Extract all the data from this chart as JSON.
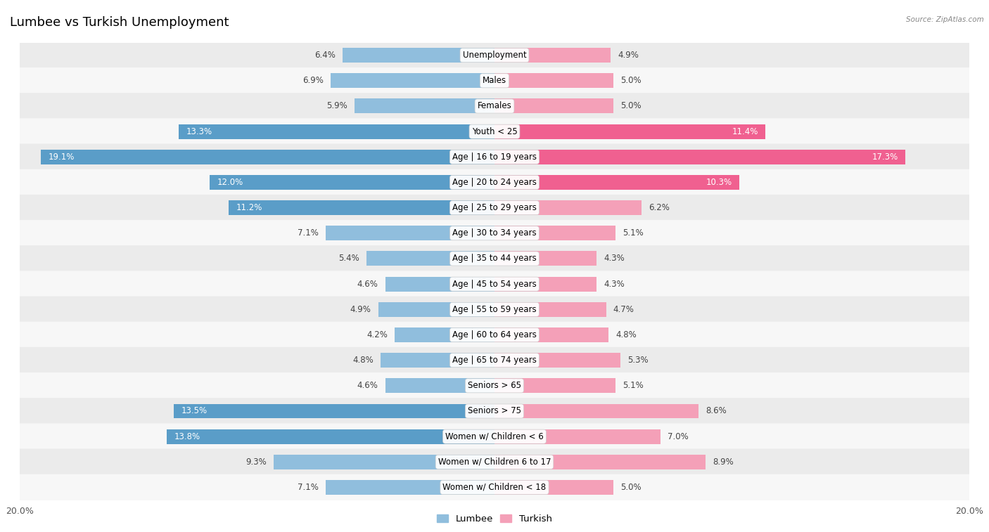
{
  "title": "Lumbee vs Turkish Unemployment",
  "source": "Source: ZipAtlas.com",
  "categories": [
    "Unemployment",
    "Males",
    "Females",
    "Youth < 25",
    "Age | 16 to 19 years",
    "Age | 20 to 24 years",
    "Age | 25 to 29 years",
    "Age | 30 to 34 years",
    "Age | 35 to 44 years",
    "Age | 45 to 54 years",
    "Age | 55 to 59 years",
    "Age | 60 to 64 years",
    "Age | 65 to 74 years",
    "Seniors > 65",
    "Seniors > 75",
    "Women w/ Children < 6",
    "Women w/ Children 6 to 17",
    "Women w/ Children < 18"
  ],
  "lumbee_values": [
    6.4,
    6.9,
    5.9,
    13.3,
    19.1,
    12.0,
    11.2,
    7.1,
    5.4,
    4.6,
    4.9,
    4.2,
    4.8,
    4.6,
    13.5,
    13.8,
    9.3,
    7.1
  ],
  "turkish_values": [
    4.9,
    5.0,
    5.0,
    11.4,
    17.3,
    10.3,
    6.2,
    5.1,
    4.3,
    4.3,
    4.7,
    4.8,
    5.3,
    5.1,
    8.6,
    7.0,
    8.9,
    5.0
  ],
  "lumbee_color": "#90bedd",
  "turkish_color": "#f4a0b8",
  "lumbee_color_highlight": "#5a9dc8",
  "turkish_color_highlight": "#f06090",
  "highlight_threshold": 10.0,
  "axis_max": 20.0,
  "bar_height": 0.58,
  "row_bg_even": "#ebebeb",
  "row_bg_odd": "#f7f7f7",
  "title_fontsize": 13,
  "label_fontsize": 8.5,
  "value_fontsize": 8.5,
  "background_color": "#ffffff"
}
